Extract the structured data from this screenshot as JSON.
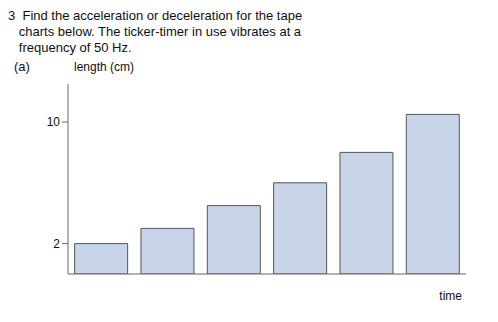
{
  "chart_data": {
    "type": "bar",
    "title": "3  Find the acceleration or deceleration for the tape\n   charts below. The ticker-timer in use vibrates at a\n   frequency of 50 Hz.",
    "annotations": [
      "(a)"
    ],
    "ylabel": "length (cm)",
    "xlabel": "time",
    "categories": [
      null,
      null,
      null,
      null,
      null,
      null
    ],
    "values": [
      2,
      3,
      4.5,
      6,
      8,
      10.5
    ],
    "color": "#c8d4e8",
    "ylim": [
      0,
      12.5
    ],
    "yticks": [
      2,
      10
    ],
    "grid": false,
    "tick_labels": "y"
  }
}
